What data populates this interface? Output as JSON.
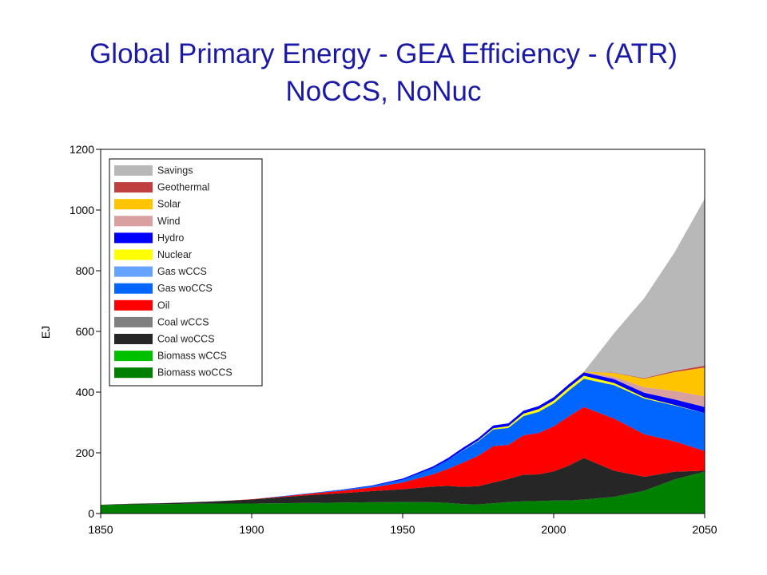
{
  "chart_data": {
    "type": "area",
    "stacked": true,
    "title": "Global Primary Energy - GEA Efficiency - (ATR)",
    "subtitle": "NoCCS, NoNuc",
    "xlabel": "",
    "ylabel": "EJ",
    "xlim": [
      1850,
      2050
    ],
    "ylim": [
      0,
      1200
    ],
    "xticks": [
      1850,
      1900,
      1950,
      2000,
      2050
    ],
    "yticks": [
      0,
      200,
      400,
      600,
      800,
      1000,
      1200
    ],
    "grid": false,
    "legend_position": "top-left",
    "x": [
      1850,
      1860,
      1870,
      1880,
      1890,
      1900,
      1910,
      1920,
      1930,
      1940,
      1950,
      1960,
      1965,
      1970,
      1975,
      1980,
      1985,
      1990,
      1995,
      2000,
      2005,
      2010,
      2020,
      2030,
      2040,
      2050
    ],
    "series": [
      {
        "name": "Biomass woCCS",
        "color": "#008000",
        "values": [
          28,
          30,
          31,
          32,
          33,
          33,
          34,
          35,
          36,
          37,
          38,
          37,
          35,
          31,
          30,
          34,
          38,
          40,
          41,
          43,
          43,
          46,
          55,
          75,
          112,
          138
        ]
      },
      {
        "name": "Biomass wCCS",
        "color": "#00c000",
        "values": [
          0,
          0,
          0,
          0,
          0,
          0,
          0,
          0,
          0,
          0,
          0,
          0,
          0,
          0,
          0,
          0,
          0,
          0,
          0,
          0,
          0,
          0,
          0,
          0,
          0,
          0
        ]
      },
      {
        "name": "Coal woCCS",
        "color": "#262626",
        "values": [
          1,
          2,
          3,
          5,
          8,
          13,
          20,
          26,
          31,
          37,
          42,
          52,
          56,
          57,
          60,
          68,
          76,
          88,
          88,
          96,
          115,
          137,
          86,
          46,
          26,
          3
        ]
      },
      {
        "name": "Coal wCCS",
        "color": "#808080",
        "values": [
          0,
          0,
          0,
          0,
          0,
          0,
          0,
          0,
          0,
          0,
          0,
          0,
          0,
          0,
          0,
          0,
          0,
          0,
          0,
          0,
          0,
          0,
          0,
          0,
          0,
          0
        ]
      },
      {
        "name": "Oil",
        "color": "#ff0000",
        "values": [
          0,
          0,
          0,
          0,
          0,
          1,
          2,
          5,
          8,
          12,
          22,
          40,
          56,
          80,
          100,
          120,
          112,
          130,
          136,
          148,
          162,
          168,
          172,
          140,
          100,
          65
        ]
      },
      {
        "name": "Gas woCCS",
        "color": "#0066ff",
        "values": [
          0,
          0,
          0,
          0,
          0,
          0,
          1,
          2,
          3,
          5,
          9,
          20,
          29,
          40,
          48,
          55,
          56,
          63,
          70,
          76,
          85,
          93,
          110,
          118,
          118,
          125
        ]
      },
      {
        "name": "Gas wCCS",
        "color": "#66a3ff",
        "values": [
          0,
          0,
          0,
          0,
          0,
          0,
          0,
          0,
          0,
          0,
          0,
          0,
          0,
          0,
          0,
          0,
          0,
          0,
          0,
          0,
          0,
          0,
          0,
          0,
          0,
          0
        ]
      },
      {
        "name": "Nuclear",
        "color": "#ffff00",
        "values": [
          0,
          0,
          0,
          0,
          0,
          0,
          0,
          0,
          0,
          0,
          0,
          0,
          0,
          1,
          2,
          4,
          6,
          8,
          9,
          9,
          10,
          10,
          7,
          4,
          2,
          0
        ]
      },
      {
        "name": "Hydro",
        "color": "#0000ff",
        "values": [
          0,
          0,
          0,
          0,
          0,
          0,
          0,
          0,
          1,
          2,
          4,
          6,
          7,
          8,
          8,
          9,
          9,
          10,
          10,
          11,
          11,
          11,
          13,
          15,
          18,
          20
        ]
      },
      {
        "name": "Wind",
        "color": "#d9a0a0",
        "values": [
          0,
          0,
          0,
          0,
          0,
          0,
          0,
          0,
          0,
          0,
          0,
          0,
          0,
          0,
          0,
          0,
          0,
          0,
          0,
          0,
          0,
          1,
          8,
          18,
          28,
          35
        ]
      },
      {
        "name": "Solar",
        "color": "#ffc400",
        "values": [
          0,
          0,
          0,
          0,
          0,
          0,
          0,
          0,
          0,
          0,
          0,
          0,
          0,
          0,
          0,
          0,
          0,
          0,
          0,
          0,
          0,
          1,
          12,
          28,
          62,
          95
        ]
      },
      {
        "name": "Geothermal",
        "color": "#c04040",
        "values": [
          0,
          0,
          0,
          0,
          0,
          0,
          0,
          0,
          0,
          0,
          0,
          0,
          0,
          0,
          0,
          0,
          0,
          0,
          0,
          0,
          0,
          0,
          1,
          2,
          4,
          6
        ]
      },
      {
        "name": "Savings",
        "color": "#b8b8b8",
        "values": [
          0,
          0,
          0,
          0,
          0,
          0,
          0,
          0,
          0,
          0,
          0,
          0,
          0,
          0,
          0,
          0,
          0,
          0,
          0,
          0,
          0,
          0,
          130,
          264,
          390,
          550
        ]
      }
    ],
    "legend_order": [
      "Savings",
      "Geothermal",
      "Solar",
      "Wind",
      "Hydro",
      "Nuclear",
      "Gas wCCS",
      "Gas woCCS",
      "Oil",
      "Coal wCCS",
      "Coal woCCS",
      "Biomass wCCS",
      "Biomass woCCS"
    ]
  }
}
